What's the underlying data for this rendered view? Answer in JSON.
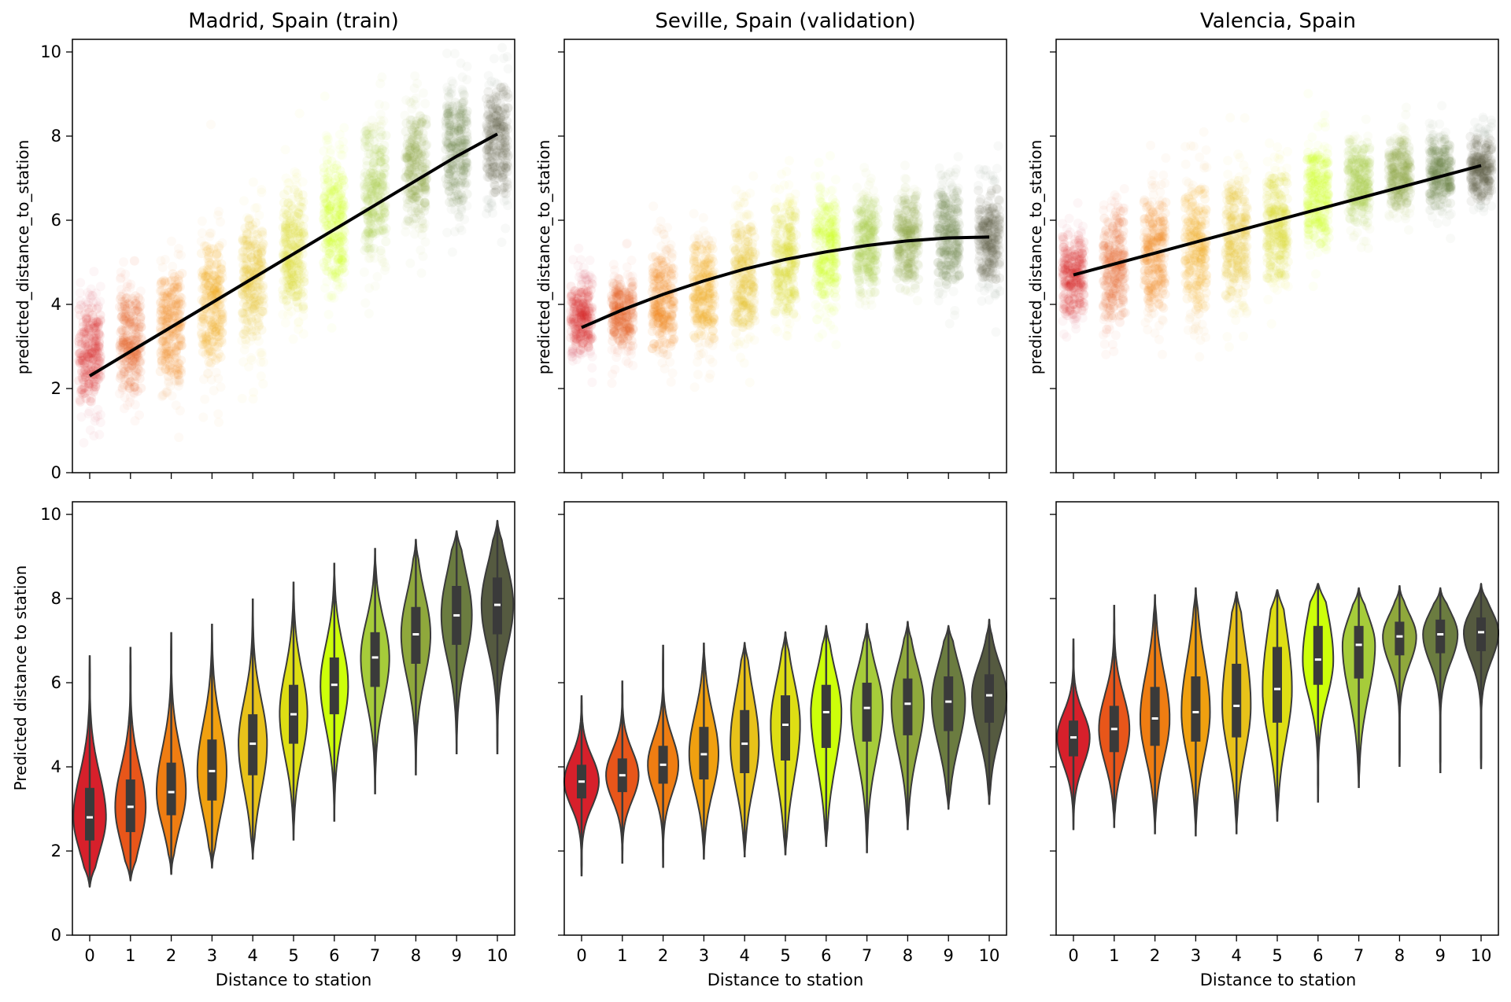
{
  "chart_data": {
    "type": "scatter+violin",
    "colors": [
      "#d7202b",
      "#e8561a",
      "#ef7d12",
      "#f0a010",
      "#e8c21a",
      "#dede14",
      "#cdff0a",
      "#a6cc3a",
      "#8fa83c",
      "#6b7c40",
      "#555a40"
    ],
    "x_ticks": [
      "0",
      "1",
      "2",
      "3",
      "4",
      "5",
      "6",
      "7",
      "8",
      "9",
      "10"
    ],
    "y_ticks": [
      "0",
      "2",
      "4",
      "6",
      "8",
      "10"
    ],
    "ylim": [
      0,
      10.3
    ],
    "top_row": {
      "ylabel": "predicted_distance_to_station",
      "panels": [
        {
          "title": "Madrid, Spain (train)",
          "medians": [
            2.8,
            3.1,
            3.5,
            4.0,
            4.6,
            5.3,
            6.0,
            6.7,
            7.2,
            7.7,
            7.9
          ],
          "spread": [
            0.7,
            0.7,
            0.8,
            0.9,
            0.9,
            0.9,
            0.9,
            0.9,
            0.8,
            0.8,
            0.8
          ],
          "fit": [
            2.3,
            2.88,
            3.46,
            4.04,
            4.62,
            5.2,
            5.78,
            6.36,
            6.94,
            7.52,
            8.05
          ]
        },
        {
          "title": "Seville, Spain (validation)",
          "medians": [
            3.7,
            3.8,
            4.05,
            4.3,
            4.6,
            5.0,
            5.3,
            5.4,
            5.5,
            5.6,
            5.65
          ],
          "spread": [
            0.5,
            0.5,
            0.7,
            0.7,
            0.8,
            0.8,
            0.8,
            0.7,
            0.7,
            0.7,
            0.7
          ],
          "fit": [
            3.45,
            3.87,
            4.24,
            4.56,
            4.84,
            5.07,
            5.25,
            5.4,
            5.51,
            5.58,
            5.6
          ]
        },
        {
          "title": "Valencia, Spain",
          "medians": [
            4.7,
            4.95,
            5.15,
            5.3,
            5.5,
            5.85,
            6.55,
            6.9,
            7.1,
            7.15,
            7.2
          ],
          "spread": [
            0.6,
            0.8,
            0.8,
            0.9,
            0.9,
            0.8,
            0.7,
            0.6,
            0.5,
            0.5,
            0.5
          ],
          "fit": [
            4.7,
            4.96,
            5.22,
            5.48,
            5.74,
            6.0,
            6.26,
            6.52,
            6.78,
            7.04,
            7.3
          ]
        }
      ]
    },
    "bottom_row": {
      "ylabel": "Predicted distance to station",
      "xlabel": "Distance to station",
      "panels": [
        {
          "medians": [
            2.8,
            3.05,
            3.4,
            3.9,
            4.55,
            5.25,
            5.95,
            6.6,
            7.15,
            7.6,
            7.85
          ],
          "q1": [
            2.25,
            2.45,
            2.85,
            3.2,
            3.8,
            4.55,
            5.25,
            5.9,
            6.45,
            6.9,
            7.15
          ],
          "q3": [
            3.5,
            3.7,
            4.1,
            4.65,
            5.25,
            5.95,
            6.6,
            7.2,
            7.8,
            8.3,
            8.5
          ],
          "wlo": [
            1.15,
            1.3,
            1.45,
            1.6,
            1.8,
            2.25,
            2.7,
            3.35,
            3.8,
            4.3,
            4.3
          ],
          "whi": [
            6.65,
            6.85,
            7.2,
            7.4,
            8.0,
            8.4,
            8.85,
            9.2,
            9.4,
            9.6,
            9.85
          ],
          "maxw": [
            0.8,
            0.75,
            0.72,
            0.72,
            0.7,
            0.68,
            0.68,
            0.7,
            0.72,
            0.75,
            0.78
          ]
        },
        {
          "medians": [
            3.65,
            3.8,
            4.05,
            4.3,
            4.55,
            5.0,
            5.3,
            5.4,
            5.5,
            5.55,
            5.7
          ],
          "q1": [
            3.25,
            3.4,
            3.6,
            3.7,
            3.85,
            4.15,
            4.45,
            4.6,
            4.75,
            4.85,
            5.05
          ],
          "q3": [
            4.05,
            4.2,
            4.5,
            4.95,
            5.35,
            5.7,
            5.95,
            6.0,
            6.1,
            6.15,
            6.2
          ],
          "wlo": [
            1.4,
            1.7,
            1.6,
            1.8,
            1.85,
            1.9,
            2.1,
            1.95,
            2.5,
            3.0,
            3.1
          ],
          "whi": [
            5.7,
            6.05,
            6.9,
            6.95,
            6.95,
            7.2,
            7.35,
            7.4,
            7.45,
            7.35,
            7.5
          ],
          "maxw": [
            0.85,
            0.8,
            0.75,
            0.72,
            0.7,
            0.72,
            0.75,
            0.78,
            0.8,
            0.82,
            0.85
          ]
        },
        {
          "medians": [
            4.7,
            4.9,
            5.15,
            5.3,
            5.45,
            5.85,
            6.55,
            6.9,
            7.1,
            7.15,
            7.2
          ],
          "q1": [
            4.25,
            4.35,
            4.5,
            4.6,
            4.7,
            5.05,
            5.95,
            6.1,
            6.65,
            6.7,
            6.75
          ],
          "q3": [
            5.1,
            5.45,
            5.9,
            6.15,
            6.45,
            6.85,
            7.35,
            7.35,
            7.45,
            7.5,
            7.55
          ],
          "wlo": [
            2.5,
            2.55,
            2.4,
            2.35,
            2.4,
            2.7,
            3.15,
            3.5,
            4.0,
            3.85,
            3.95
          ],
          "whi": [
            7.05,
            7.85,
            8.1,
            8.25,
            8.15,
            8.2,
            8.35,
            8.25,
            8.3,
            8.25,
            8.35
          ],
          "maxw": [
            0.8,
            0.75,
            0.72,
            0.7,
            0.7,
            0.72,
            0.75,
            0.8,
            0.82,
            0.85,
            0.85
          ]
        }
      ]
    }
  }
}
